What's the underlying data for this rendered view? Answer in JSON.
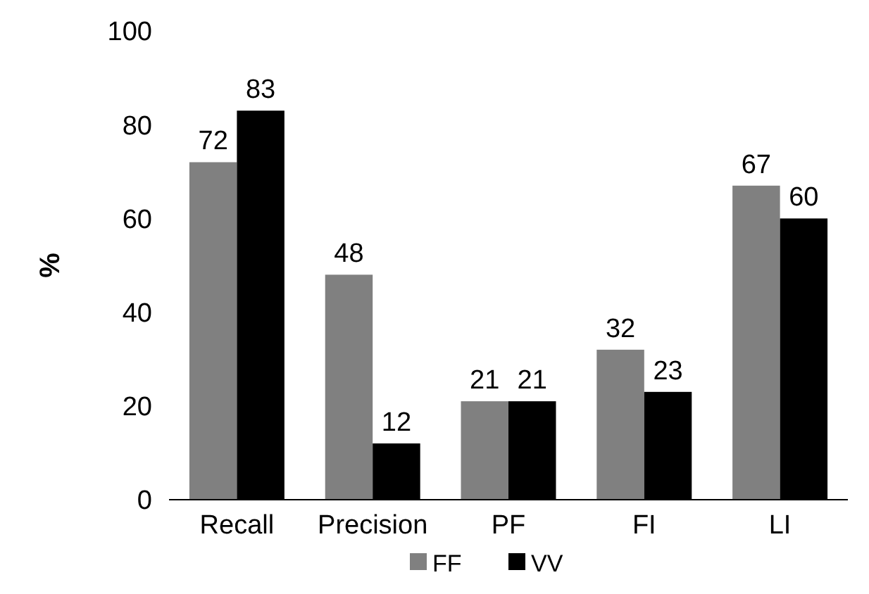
{
  "chart_data": {
    "type": "bar",
    "ylabel": "%",
    "categories": [
      "Recall",
      "Precision",
      "PF",
      "FI",
      "LI"
    ],
    "series": [
      {
        "name": "FF",
        "color": "#808080",
        "values": [
          72,
          48,
          21,
          32,
          67
        ]
      },
      {
        "name": "VV",
        "color": "#000000",
        "values": [
          83,
          12,
          21,
          23,
          60
        ]
      }
    ],
    "ylim": [
      0,
      100
    ],
    "yticks": [
      0,
      20,
      40,
      60,
      80,
      100
    ],
    "data_labels": true,
    "legend": "bottom"
  }
}
